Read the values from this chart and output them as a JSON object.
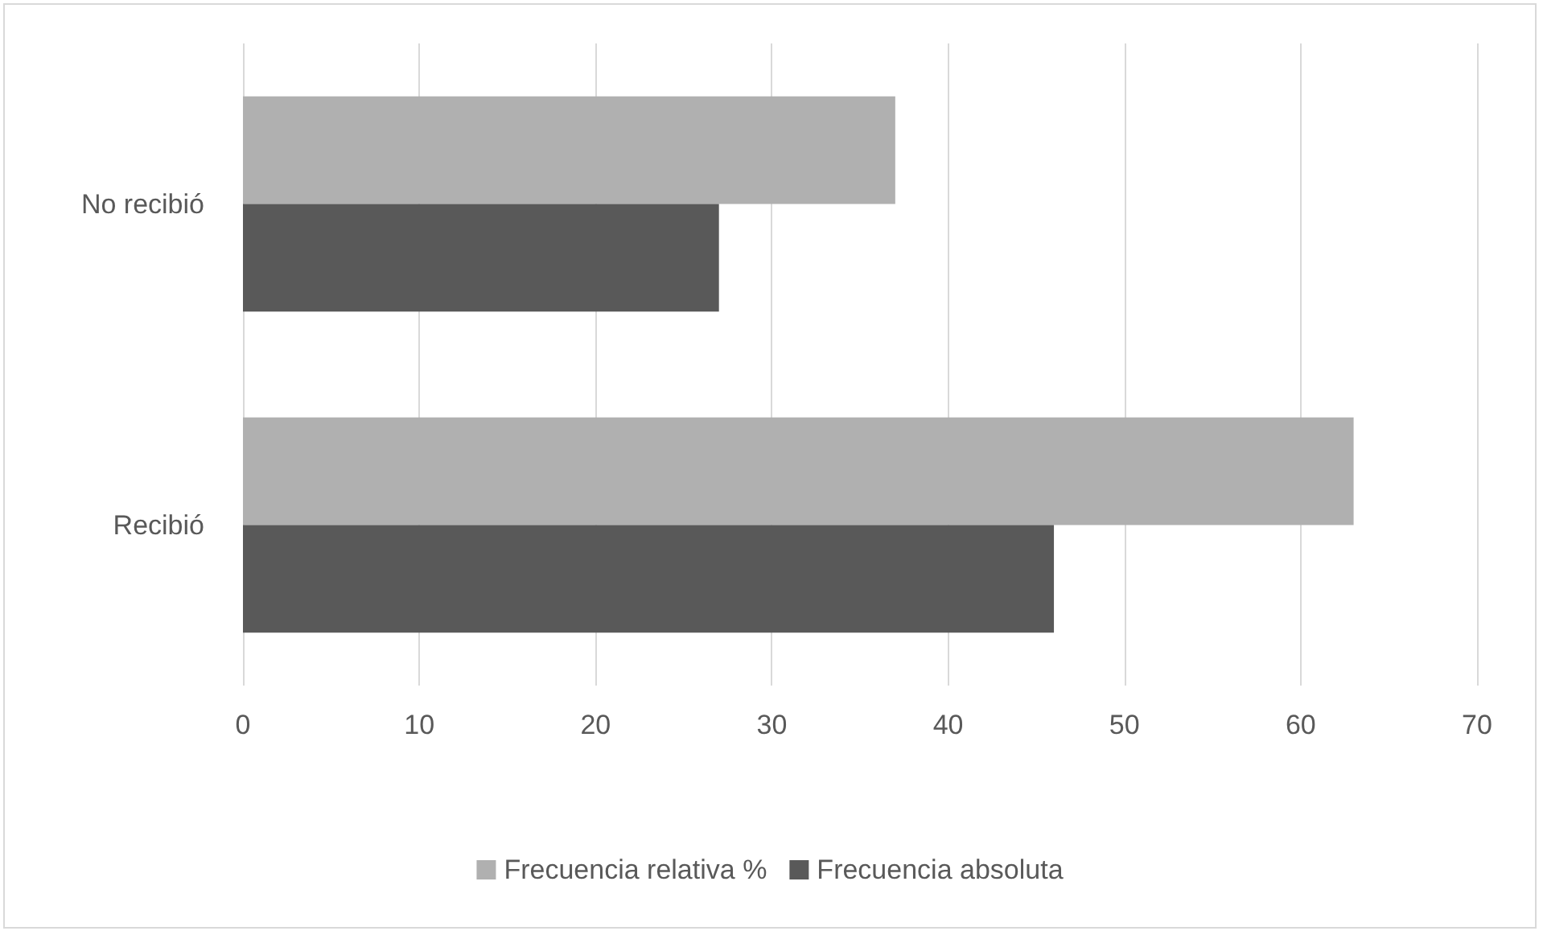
{
  "chart_data": {
    "type": "bar",
    "orientation": "horizontal",
    "categories": [
      "No recibió",
      "Recibió"
    ],
    "series": [
      {
        "name": "Frecuencia relativa %",
        "color": "#b0b0b0",
        "values": [
          37,
          63
        ]
      },
      {
        "name": "Frecuencia absoluta",
        "color": "#595959",
        "values": [
          27,
          46
        ]
      }
    ],
    "xlim": [
      0,
      70
    ],
    "xticks": [
      0,
      10,
      20,
      30,
      40,
      50,
      60,
      70
    ],
    "grid": "x",
    "legend": "bottom"
  }
}
